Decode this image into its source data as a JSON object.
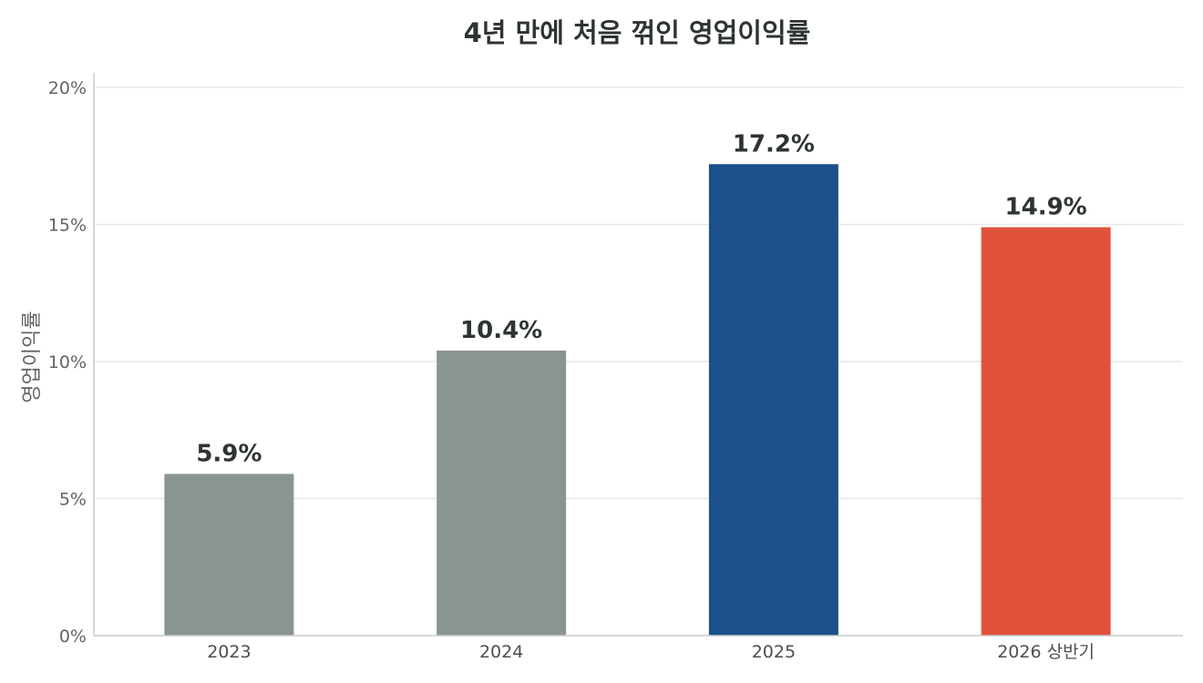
{
  "chart_data": {
    "type": "bar",
    "title": "4년 만에 처음 꺾인 영업이익률",
    "xlabel": "",
    "ylabel": "영업이익률",
    "categories": [
      "2023",
      "2024",
      "2025",
      "2026 상반기"
    ],
    "values": [
      5.9,
      10.4,
      17.2,
      14.9
    ],
    "value_labels": [
      "5.9%",
      "10.4%",
      "17.2%",
      "14.9%"
    ],
    "bar_colors": [
      "#8b9590",
      "#8b9590",
      "#1c508a",
      "#e0523c"
    ],
    "ylim": [
      0,
      20
    ],
    "yticks": [
      0,
      5,
      10,
      15,
      20
    ],
    "ytick_labels": [
      "0%",
      "5%",
      "10%",
      "15%",
      "20%"
    ],
    "grid": true,
    "legend": "none"
  }
}
